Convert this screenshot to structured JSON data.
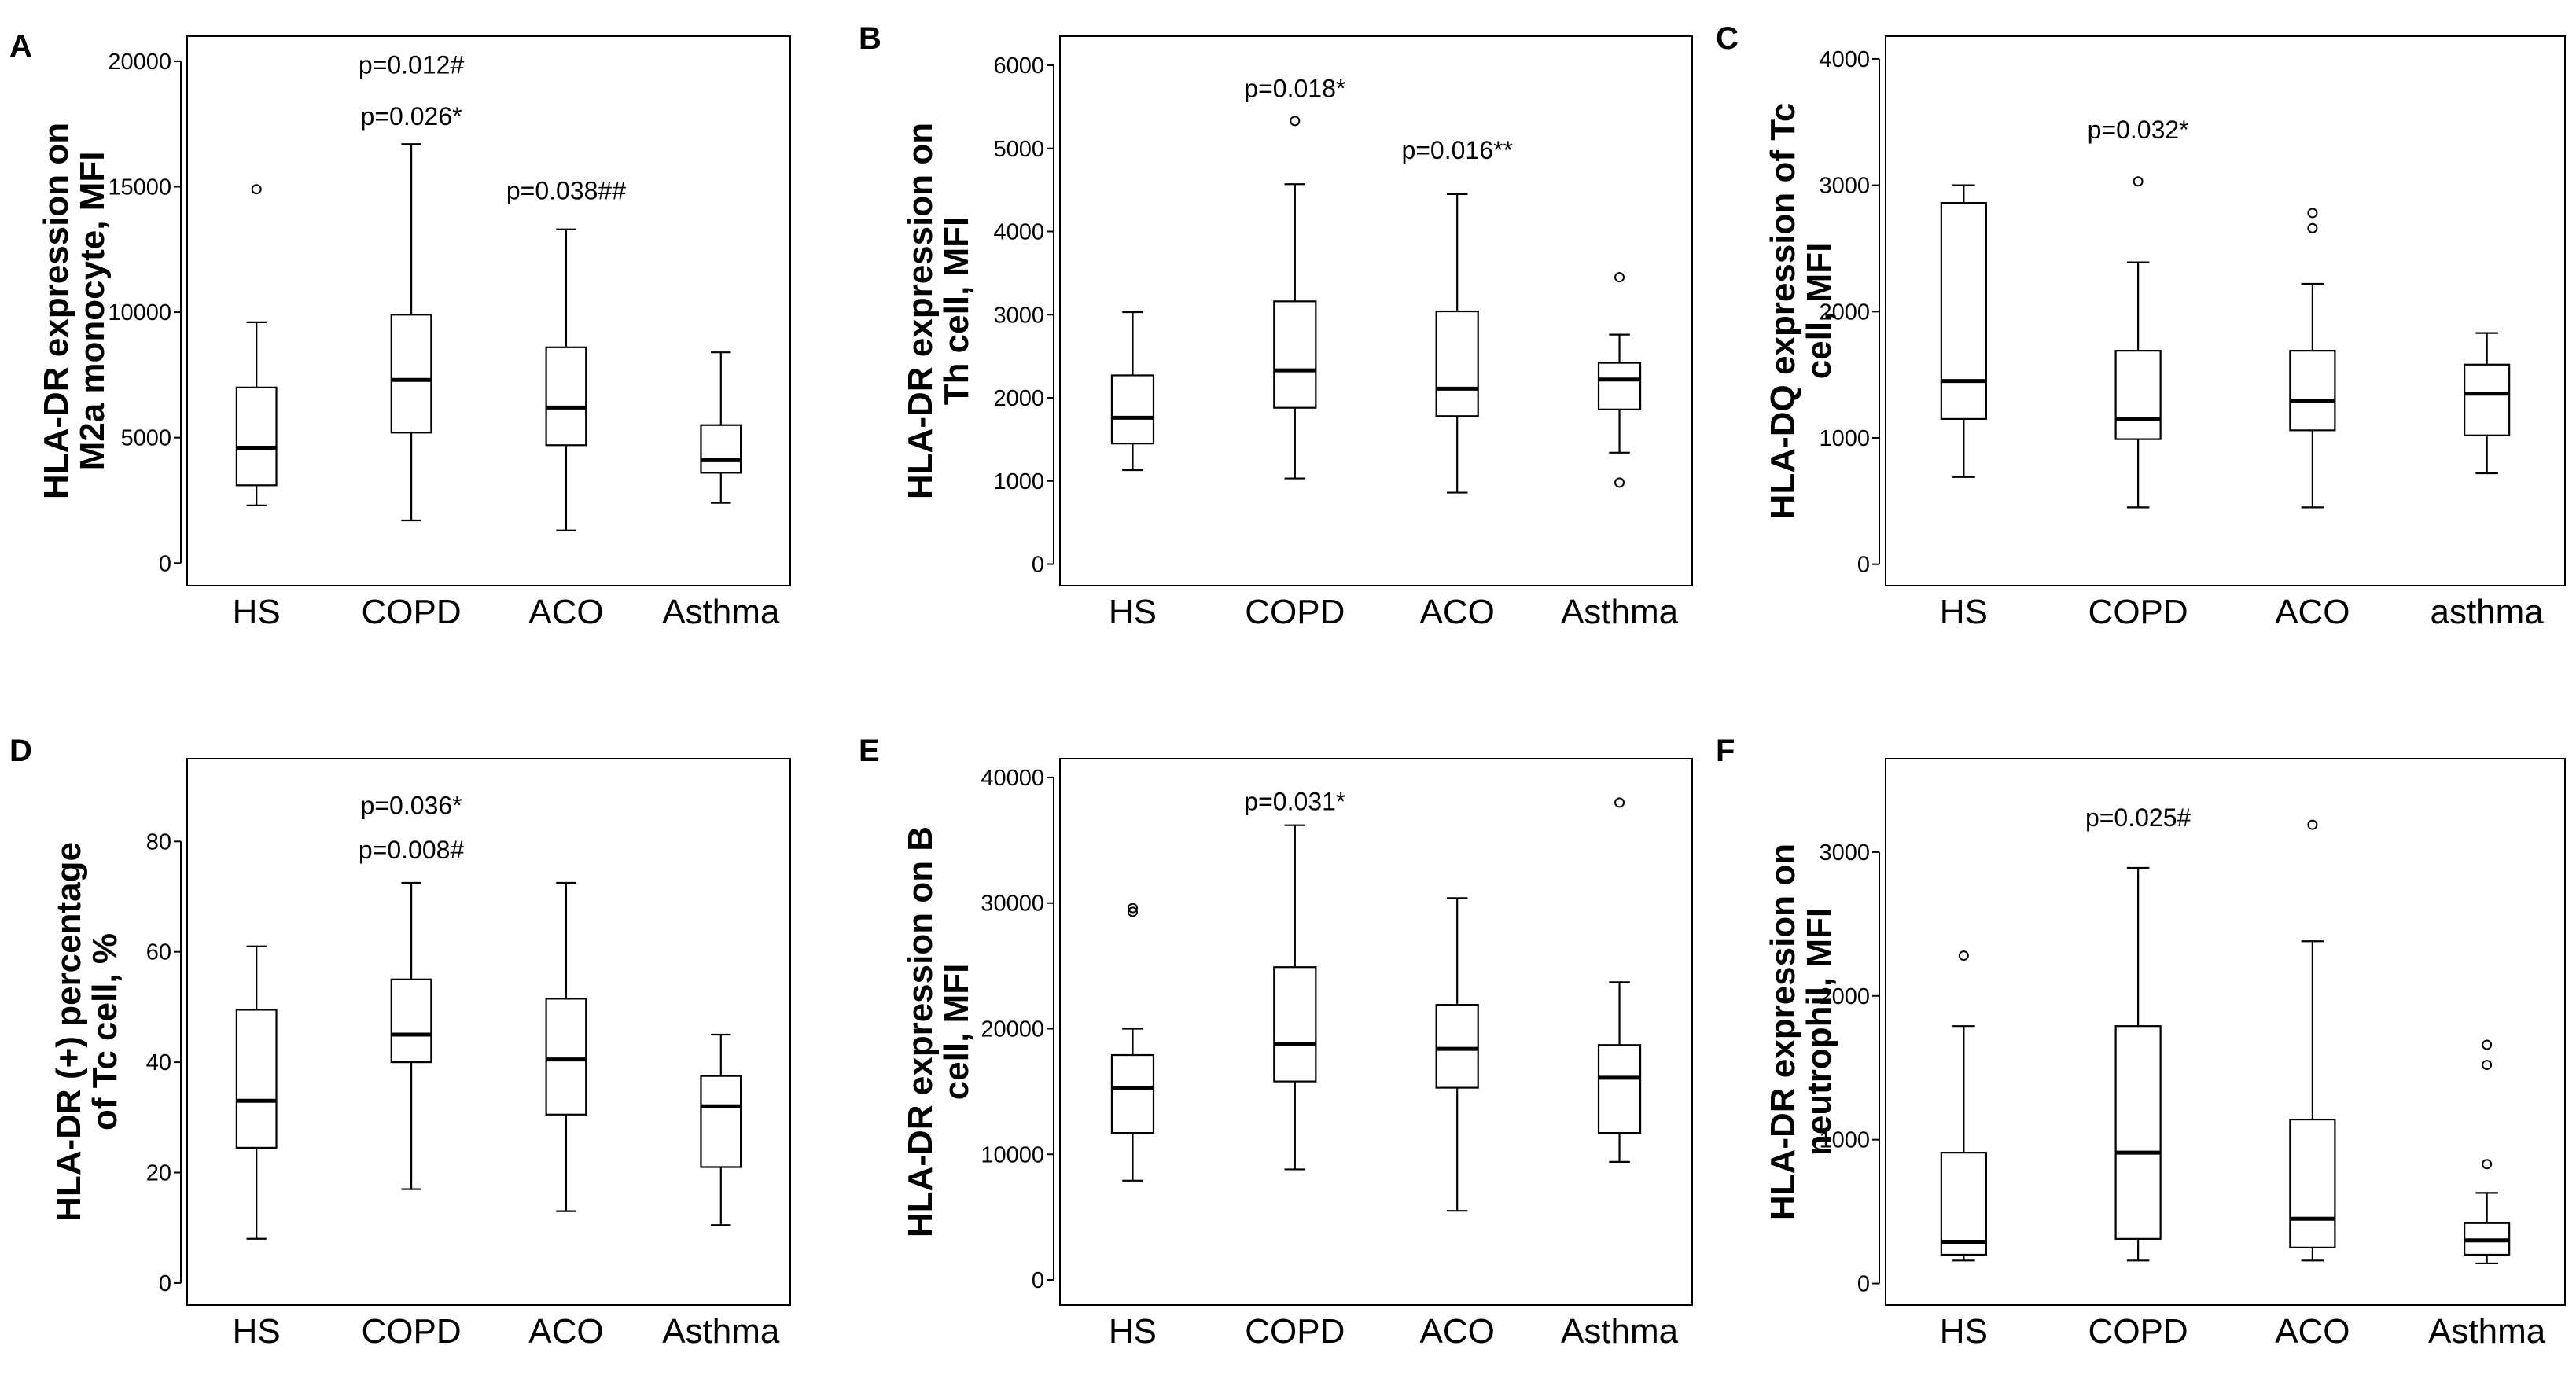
{
  "chart_data": [
    {
      "type": "box",
      "panel": "A",
      "ylabel_lines": [
        "HLA-DR expression on",
        "M2a monocyte, MFI"
      ],
      "categories": [
        "HS",
        "COPD",
        "ACO",
        "Asthma"
      ],
      "yticks": [
        0,
        5000,
        10000,
        15000,
        20000
      ],
      "ylim": [
        -900,
        21000
      ],
      "boxes": [
        {
          "min": 2300,
          "q1": 3100,
          "median": 4600,
          "q3": 7000,
          "max": 9600,
          "outliers": [
            14900
          ]
        },
        {
          "min": 1700,
          "q1": 5200,
          "median": 7300,
          "q3": 9900,
          "max": 16700,
          "outliers": []
        },
        {
          "min": 1300,
          "q1": 4700,
          "median": 6200,
          "q3": 8600,
          "max": 13300,
          "outliers": []
        },
        {
          "min": 2400,
          "q1": 3600,
          "median": 4100,
          "q3": 5500,
          "max": 8400,
          "outliers": []
        }
      ],
      "annotations": [
        {
          "text": "p=0.012#",
          "category": 1,
          "value": 19850
        },
        {
          "text": "p=0.026*",
          "category": 1,
          "value": 17800
        },
        {
          "text": "p=0.038##",
          "category": 2,
          "value": 14850
        }
      ]
    },
    {
      "type": "box",
      "panel": "B",
      "ylabel_lines": [
        "HLA-DR expression on",
        "Th cell, MFI"
      ],
      "categories": [
        "HS",
        "COPD",
        "ACO",
        "Asthma"
      ],
      "yticks": [
        0,
        1000,
        2000,
        3000,
        4000,
        5000,
        6000
      ],
      "ylim": [
        -260,
        6350
      ],
      "boxes": [
        {
          "min": 1130,
          "q1": 1450,
          "median": 1760,
          "q3": 2270,
          "max": 3030,
          "outliers": []
        },
        {
          "min": 1030,
          "q1": 1880,
          "median": 2330,
          "q3": 3160,
          "max": 4570,
          "outliers": [
            5330
          ]
        },
        {
          "min": 860,
          "q1": 1780,
          "median": 2110,
          "q3": 3040,
          "max": 4450,
          "outliers": []
        },
        {
          "min": 1340,
          "q1": 1860,
          "median": 2220,
          "q3": 2420,
          "max": 2760,
          "outliers": [
            3450,
            980
          ]
        }
      ],
      "annotations": [
        {
          "text": "p=0.018*",
          "category": 1,
          "value": 5720
        },
        {
          "text": "p=0.016**",
          "category": 2,
          "value": 4980
        }
      ]
    },
    {
      "type": "box",
      "panel": "C",
      "ylabel_lines": [
        "HLA-DQ expression of Tc",
        "cell, MFI"
      ],
      "categories": [
        "HS",
        "COPD",
        "ACO",
        "asthma"
      ],
      "yticks": [
        0,
        1000,
        2000,
        3000,
        4000
      ],
      "ylim": [
        -170,
        4180
      ],
      "boxes": [
        {
          "min": 690,
          "q1": 1150,
          "median": 1450,
          "q3": 2860,
          "max": 3000,
          "outliers": []
        },
        {
          "min": 450,
          "q1": 990,
          "median": 1150,
          "q3": 1690,
          "max": 2390,
          "outliers": [
            3030
          ]
        },
        {
          "min": 450,
          "q1": 1060,
          "median": 1290,
          "q3": 1690,
          "max": 2220,
          "outliers": [
            2660,
            2780
          ]
        },
        {
          "min": 720,
          "q1": 1020,
          "median": 1350,
          "q3": 1580,
          "max": 1830,
          "outliers": []
        }
      ],
      "annotations": [
        {
          "text": "p=0.032*",
          "category": 1,
          "value": 3440
        }
      ]
    },
    {
      "type": "box",
      "panel": "D",
      "ylabel_lines": [
        "HLA-DR (+) percentage",
        "of Tc cell, %"
      ],
      "categories": [
        "HS",
        "COPD",
        "ACO",
        "Asthma"
      ],
      "yticks": [
        0,
        20,
        40,
        60,
        80
      ],
      "ylim": [
        -4,
        95
      ],
      "boxes": [
        {
          "min": 8,
          "q1": 24.5,
          "median": 33,
          "q3": 49.5,
          "max": 61,
          "outliers": []
        },
        {
          "min": 17,
          "q1": 40,
          "median": 45,
          "q3": 55,
          "max": 72.5,
          "outliers": []
        },
        {
          "min": 13,
          "q1": 30.5,
          "median": 40.5,
          "q3": 51.5,
          "max": 72.5,
          "outliers": []
        },
        {
          "min": 10.5,
          "q1": 21,
          "median": 32,
          "q3": 37.5,
          "max": 45,
          "outliers": []
        }
      ],
      "annotations": [
        {
          "text": "p=0.036*",
          "category": 1,
          "value": 86.5
        },
        {
          "text": "p=0.008#",
          "category": 1,
          "value": 78.5
        }
      ]
    },
    {
      "type": "box",
      "panel": "E",
      "ylabel_lines": [
        "HLA-DR expression on B",
        "cell, MFI"
      ],
      "categories": [
        "HS",
        "COPD",
        "ACO",
        "Asthma"
      ],
      "yticks": [
        0,
        10000,
        20000,
        30000,
        40000
      ],
      "ylim": [
        -2000,
        41500
      ],
      "boxes": [
        {
          "min": 7900,
          "q1": 11700,
          "median": 15300,
          "q3": 17900,
          "max": 20000,
          "outliers": [
            29300,
            29600
          ]
        },
        {
          "min": 8800,
          "q1": 15800,
          "median": 18800,
          "q3": 24900,
          "max": 36200,
          "outliers": []
        },
        {
          "min": 5500,
          "q1": 15300,
          "median": 18400,
          "q3": 21900,
          "max": 30400,
          "outliers": []
        },
        {
          "min": 9400,
          "q1": 11700,
          "median": 16100,
          "q3": 18700,
          "max": 23700,
          "outliers": [
            38000
          ]
        }
      ],
      "annotations": [
        {
          "text": "p=0.031*",
          "category": 1,
          "value": 38100
        }
      ]
    },
    {
      "type": "box",
      "panel": "F",
      "ylabel_lines": [
        "HLA-DR expression on",
        "neutrophil, MFI"
      ],
      "categories": [
        "HS",
        "COPD",
        "ACO",
        "Asthma"
      ],
      "yticks": [
        0,
        1000,
        2000,
        3000
      ],
      "ylim": [
        -150,
        3650
      ],
      "boxes": [
        {
          "min": 160,
          "q1": 200,
          "median": 290,
          "q3": 910,
          "max": 1790,
          "outliers": [
            2280
          ]
        },
        {
          "min": 160,
          "q1": 310,
          "median": 910,
          "q3": 1790,
          "max": 2890,
          "outliers": []
        },
        {
          "min": 160,
          "q1": 250,
          "median": 450,
          "q3": 1140,
          "max": 2380,
          "outliers": [
            3190
          ]
        },
        {
          "min": 140,
          "q1": 200,
          "median": 300,
          "q3": 420,
          "max": 630,
          "outliers": [
            830,
            1520,
            1660
          ]
        }
      ],
      "annotations": [
        {
          "text": "p=0.025#",
          "category": 1,
          "value": 3240
        }
      ]
    }
  ]
}
